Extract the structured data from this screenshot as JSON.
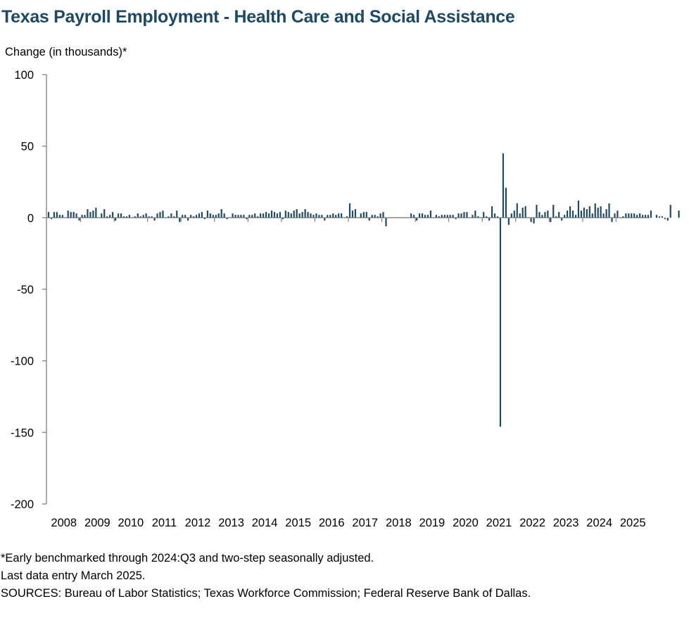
{
  "title": "Texas Payroll Employment - Health Care and Social Assistance",
  "ylabel": "Change (in thousands)*",
  "footnotes": [
    "*Early benchmarked through 2024:Q3 and two-step seasonally adjusted.",
    "Last data entry March 2025.",
    "SOURCES: Bureau of Labor Statistics; Texas Workforce Commission; Federal Reserve Bank of Dallas."
  ],
  "colors": {
    "title": "#1c4a66",
    "bars": "#1c4a66",
    "axis": "#808080"
  },
  "chart_data": {
    "type": "bar",
    "frequency": "monthly",
    "start": "2008-01",
    "end": "2025-03",
    "ylim": [
      -200,
      100
    ],
    "yticks": [
      100,
      50,
      0,
      -50,
      -100,
      -150,
      -200
    ],
    "xticks": [
      "2008",
      "2009",
      "2010",
      "2011",
      "2012",
      "2013",
      "2014",
      "2015",
      "2016",
      "2017",
      "2018",
      "2019",
      "2020",
      "2021",
      "2022",
      "2023",
      "2024",
      "2025"
    ],
    "grid": false,
    "series": [
      {
        "values": [
          4,
          -1,
          4,
          4,
          2,
          2,
          0,
          5,
          4,
          4,
          3,
          -2,
          2,
          2,
          6,
          4,
          5,
          7,
          0,
          3,
          6,
          1,
          2,
          4,
          -2,
          3,
          3,
          1,
          1,
          2,
          0,
          1,
          3,
          1,
          2,
          3,
          1,
          1,
          -2,
          3,
          4,
          5,
          0,
          1,
          3,
          1,
          5,
          -3,
          2,
          2,
          -2,
          2,
          1,
          2,
          3,
          4,
          -1,
          5,
          3,
          2,
          2,
          3,
          6,
          3,
          -1,
          0,
          3,
          2,
          2,
          2,
          2,
          -1,
          2,
          2,
          3,
          1,
          3,
          3,
          4,
          3,
          5,
          4,
          3,
          4,
          -1,
          5,
          4,
          3,
          5,
          6,
          3,
          4,
          6,
          4,
          3,
          2,
          3,
          2,
          2,
          -2,
          2,
          2,
          3,
          2,
          3,
          3,
          0,
          1,
          10,
          5,
          6,
          0,
          3,
          4,
          4,
          -2,
          2,
          2,
          1,
          3,
          4,
          -6,
          0,
          0,
          0,
          0,
          0,
          0,
          0,
          0,
          3,
          2,
          -2,
          3,
          3,
          2,
          2,
          5,
          0,
          2,
          1,
          2,
          2,
          2,
          2,
          2,
          -1,
          3,
          3,
          4,
          4,
          0,
          2,
          5,
          1,
          0,
          4,
          1,
          -2,
          8,
          3,
          1,
          -146,
          45,
          21,
          -5,
          3,
          5,
          10,
          3,
          7,
          8,
          0,
          -3,
          -4,
          9,
          4,
          2,
          4,
          5,
          -3,
          9,
          1,
          4,
          -2,
          2,
          5,
          8,
          5,
          2,
          12,
          5,
          7,
          6,
          8,
          3,
          10,
          7,
          8,
          3,
          6,
          10,
          -3,
          3,
          5,
          0,
          1,
          3,
          3,
          3,
          3,
          2,
          3,
          2,
          2,
          2,
          5,
          0,
          2,
          1,
          1,
          -1,
          -2,
          9,
          0,
          0,
          5
        ]
      }
    ]
  }
}
